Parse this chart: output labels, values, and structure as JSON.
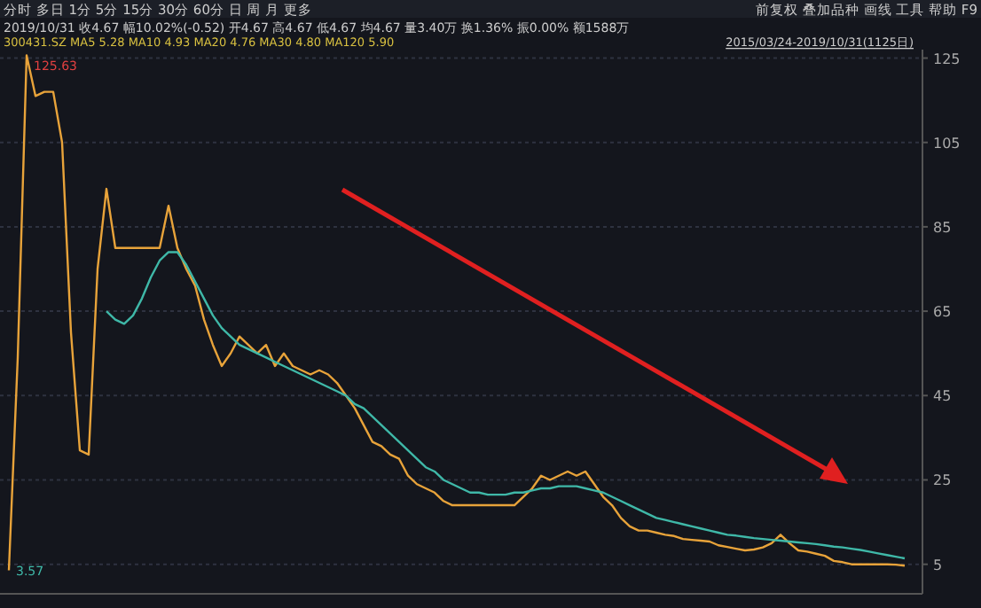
{
  "chart_data": {
    "type": "line",
    "ylim": [
      -2,
      127
    ],
    "yticks": [
      5,
      25,
      45,
      65,
      85,
      105,
      125
    ],
    "grid": "y",
    "categories": [
      null,
      null,
      null,
      null,
      null,
      null,
      null,
      null,
      null,
      null,
      null,
      null,
      null,
      null,
      null,
      null,
      null,
      null,
      null,
      null,
      null,
      null,
      null,
      null,
      null,
      null,
      null,
      null,
      null,
      null,
      null,
      null,
      null,
      null,
      null,
      null,
      null,
      null,
      null,
      null,
      null,
      null,
      null,
      null,
      null,
      null,
      null,
      null,
      null,
      null,
      null,
      null,
      null,
      null,
      null,
      null,
      null,
      null,
      null,
      null,
      null,
      null,
      null,
      null,
      null,
      null,
      null,
      null,
      null,
      null,
      null,
      null,
      null,
      null,
      null,
      null,
      null,
      null,
      null,
      null,
      null,
      null,
      null,
      null,
      null,
      null,
      null,
      null,
      null,
      null,
      null,
      null,
      null,
      null,
      null,
      null,
      null,
      null,
      null,
      null,
      null,
      null
    ],
    "series": [
      {
        "color": "#e8a33a",
        "values": [
          3.57,
          54,
          125.63,
          116,
          117,
          117,
          105,
          60,
          32,
          31,
          75,
          94,
          80,
          80,
          80,
          80,
          80,
          80,
          90,
          80,
          75,
          71,
          63,
          57,
          52,
          55,
          59,
          57,
          55,
          57,
          52,
          55,
          52,
          51,
          50,
          51,
          50,
          48,
          45,
          42,
          38,
          34,
          33,
          31,
          30,
          26,
          24,
          23,
          22,
          20,
          19,
          19,
          19,
          19,
          19,
          19,
          19,
          19,
          21,
          23,
          26,
          25,
          26,
          27,
          26,
          27,
          24,
          21,
          19,
          16,
          14,
          13,
          13,
          12.5,
          12,
          11.7,
          11,
          10.8,
          10.6,
          10.4,
          9.5,
          9.1,
          8.7,
          8.3,
          8.5,
          9,
          10,
          12,
          10,
          8.3,
          8,
          7.5,
          7,
          5.8,
          5.5,
          5,
          5,
          5,
          5,
          5,
          4.9,
          4.67
        ]
      },
      {
        "color": "#3fb8a8",
        "values": [
          null,
          null,
          null,
          null,
          null,
          null,
          null,
          null,
          null,
          null,
          null,
          65,
          63,
          62,
          64,
          68,
          73,
          77,
          79,
          79,
          76,
          72,
          68,
          64,
          61,
          59,
          57,
          56,
          55,
          54,
          53,
          52,
          51,
          50,
          49,
          48,
          47,
          46,
          45,
          43,
          42,
          40,
          38,
          36,
          34,
          32,
          30,
          28,
          27,
          25,
          24,
          23,
          22,
          22,
          21.5,
          21.5,
          21.5,
          22,
          22,
          22.5,
          23,
          23,
          23.5,
          23.5,
          23.5,
          23,
          22.5,
          22,
          21,
          20,
          19,
          18,
          17,
          16,
          15.5,
          15,
          14.5,
          14,
          13.5,
          13,
          12.5,
          12,
          11.8,
          11.5,
          11.2,
          11,
          10.8,
          10.6,
          10.4,
          10.2,
          10,
          9.8,
          9.5,
          9.2,
          9,
          8.7,
          8.4,
          8,
          7.6,
          7.2,
          6.8,
          6.4
        ]
      }
    ],
    "annotations": [
      "分时 多日 1分 5分 15分 30分 60分 日 周 月 更多",
      "前复权 叠加品种 画线 工具 帮助 F9",
      "2019/10/31 收4.67 幅10.02%(-0.52) 开4.67 高4.67 低4.67 均4.67 量3.40万 换1.36% 振0.00% 额1588万",
      "300431.SZ MA5 5.28 MA10 4.93 MA20 4.76 MA30 4.80 MA120 5.90",
      "2015/03/24-2019/10/31(1125日)",
      "125.63",
      "3.57"
    ]
  }
}
